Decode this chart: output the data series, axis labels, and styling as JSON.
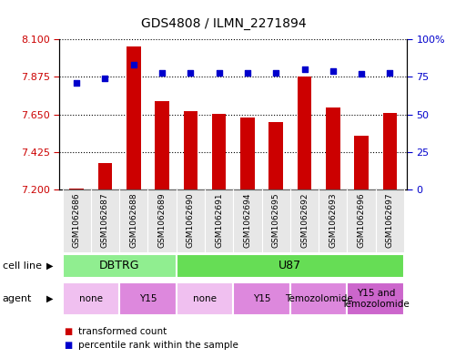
{
  "title": "GDS4808 / ILMN_2271894",
  "samples": [
    "GSM1062686",
    "GSM1062687",
    "GSM1062688",
    "GSM1062689",
    "GSM1062690",
    "GSM1062691",
    "GSM1062694",
    "GSM1062695",
    "GSM1062692",
    "GSM1062693",
    "GSM1062696",
    "GSM1062697"
  ],
  "red_values": [
    7.205,
    7.36,
    8.06,
    7.73,
    7.67,
    7.655,
    7.635,
    7.605,
    7.878,
    7.69,
    7.525,
    7.66
  ],
  "blue_values": [
    71,
    74,
    83,
    78,
    78,
    78,
    78,
    78,
    80,
    79,
    77,
    78
  ],
  "ylim_left": [
    7.2,
    8.1
  ],
  "ylim_right": [
    0,
    100
  ],
  "yticks_left": [
    7.2,
    7.425,
    7.65,
    7.875,
    8.1
  ],
  "yticks_right": [
    0,
    25,
    50,
    75,
    100
  ],
  "cell_line_groups": [
    {
      "label": "DBTRG",
      "start": 0,
      "end": 3,
      "color": "#90ee90"
    },
    {
      "label": "U87",
      "start": 4,
      "end": 11,
      "color": "#66dd55"
    }
  ],
  "agent_groups": [
    {
      "label": "none",
      "start": 0,
      "end": 1,
      "color": "#f0c0f0"
    },
    {
      "label": "Y15",
      "start": 2,
      "end": 3,
      "color": "#dd88dd"
    },
    {
      "label": "none",
      "start": 4,
      "end": 5,
      "color": "#f0c0f0"
    },
    {
      "label": "Y15",
      "start": 6,
      "end": 7,
      "color": "#dd88dd"
    },
    {
      "label": "Temozolomide",
      "start": 8,
      "end": 9,
      "color": "#dd88dd"
    },
    {
      "label": "Y15 and\nTemozolomide",
      "start": 10,
      "end": 11,
      "color": "#cc66cc"
    }
  ],
  "bar_color": "#cc0000",
  "dot_color": "#0000cc",
  "left_tick_color": "#cc0000",
  "right_tick_color": "#0000cc",
  "fig_width": 5.23,
  "fig_height": 3.93,
  "dpi": 100
}
